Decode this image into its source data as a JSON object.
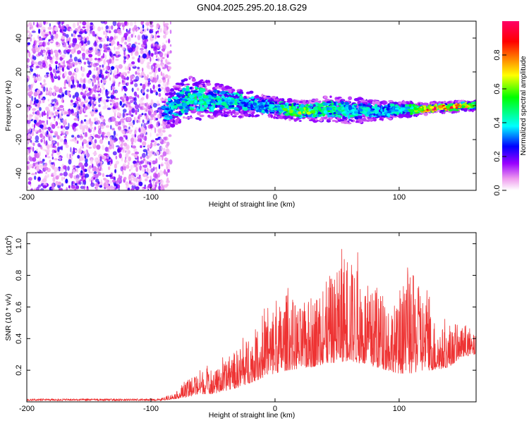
{
  "title": "GN04.2025.295.20.18.G29",
  "chart_data": [
    {
      "type": "heatmap",
      "xlabel": "Height of straight line (km)",
      "ylabel": "Frequency (Hz)",
      "xlim": [
        -200,
        162
      ],
      "ylim": [
        -50,
        50
      ],
      "xticks": [
        -200,
        -100,
        0,
        100
      ],
      "xtick_labels": [
        "-200",
        "-100",
        "0",
        "100"
      ],
      "yticks": [
        -40,
        -20,
        0,
        20,
        40
      ],
      "ytick_labels": [
        "-40",
        "-20",
        "0",
        "20",
        "40"
      ],
      "colorbar": {
        "label": "Normalized spectral amplitude",
        "range": [
          0,
          1
        ],
        "ticks": [
          0,
          0.2,
          0.4,
          0.6,
          0.8
        ],
        "tick_labels": [
          "0.0",
          "0.2",
          "0.4",
          "0.6",
          "0.8"
        ],
        "colors": [
          "#ffffff",
          "#ee99ee",
          "#9900ff",
          "#0000ff",
          "#00ffff",
          "#00ff00",
          "#ffff00",
          "#ff8000",
          "#ff0000",
          "#ff0066"
        ]
      },
      "noise_region_x": [
        -200,
        -88
      ],
      "signal_track": {
        "x": [
          -90,
          -80,
          -70,
          -60,
          -50,
          -40,
          -30,
          -20,
          -10,
          0,
          10,
          20,
          30,
          40,
          50,
          60,
          70,
          80,
          90,
          100,
          110,
          120,
          130,
          140,
          150,
          160
        ],
        "center_freq": [
          -4,
          0,
          4,
          4,
          3,
          3,
          2,
          1,
          0,
          -1,
          -2,
          -3,
          -3,
          -2,
          -2,
          -3,
          -3,
          -3,
          -3,
          -2,
          -2,
          -2,
          -1,
          -1,
          0,
          0
        ],
        "half_width": [
          6,
          8,
          9,
          8,
          7,
          6,
          6,
          5,
          4,
          4,
          4,
          4,
          4,
          5,
          5,
          5,
          5,
          4,
          4,
          3,
          3,
          2,
          2,
          2,
          2,
          2
        ],
        "peak_amplitude": [
          0.35,
          0.45,
          0.5,
          0.5,
          0.45,
          0.45,
          0.45,
          0.4,
          0.4,
          0.45,
          0.6,
          0.7,
          0.6,
          0.55,
          0.5,
          0.45,
          0.45,
          0.4,
          0.4,
          0.45,
          0.6,
          0.95,
          0.95,
          0.95,
          0.9,
          0.6
        ]
      }
    },
    {
      "type": "line",
      "xlabel": "Height of straight line (km)",
      "ylabel": "SNR (10 * v/v)",
      "y_multiplier": "(x10",
      "y_multiplier_exp": "4",
      "xlim": [
        -200,
        162
      ],
      "ylim": [
        0,
        1.07
      ],
      "xticks": [
        -200,
        -100,
        0,
        100
      ],
      "xtick_labels": [
        "-200",
        "-100",
        "0",
        "100"
      ],
      "yticks": [
        0.2,
        0.4,
        0.6,
        0.8,
        1.0
      ],
      "ytick_labels": [
        "0.2",
        "0.4",
        "0.6",
        "0.8",
        "1.0"
      ],
      "color": "#ee3333",
      "series": [
        {
          "name": "SNR",
          "x": [
            -200,
            -180,
            -160,
            -140,
            -120,
            -100,
            -90,
            -80,
            -70,
            -60,
            -50,
            -40,
            -30,
            -20,
            -10,
            0,
            10,
            20,
            30,
            40,
            50,
            60,
            70,
            80,
            90,
            100,
            110,
            120,
            130,
            140,
            150,
            162
          ],
          "baseline": [
            0.01,
            0.01,
            0.01,
            0.01,
            0.01,
            0.01,
            0.01,
            0.02,
            0.03,
            0.05,
            0.05,
            0.07,
            0.09,
            0.12,
            0.15,
            0.18,
            0.2,
            0.21,
            0.22,
            0.24,
            0.25,
            0.26,
            0.24,
            0.22,
            0.2,
            0.18,
            0.18,
            0.2,
            0.2,
            0.22,
            0.28,
            0.3
          ],
          "envelope": [
            0.015,
            0.015,
            0.02,
            0.02,
            0.015,
            0.015,
            0.03,
            0.07,
            0.16,
            0.25,
            0.22,
            0.3,
            0.4,
            0.5,
            0.6,
            0.68,
            0.82,
            0.7,
            0.78,
            0.88,
            0.96,
            1.07,
            0.95,
            0.78,
            0.8,
            0.7,
            0.98,
            0.8,
            0.58,
            0.5,
            0.5,
            0.45
          ]
        }
      ]
    }
  ]
}
